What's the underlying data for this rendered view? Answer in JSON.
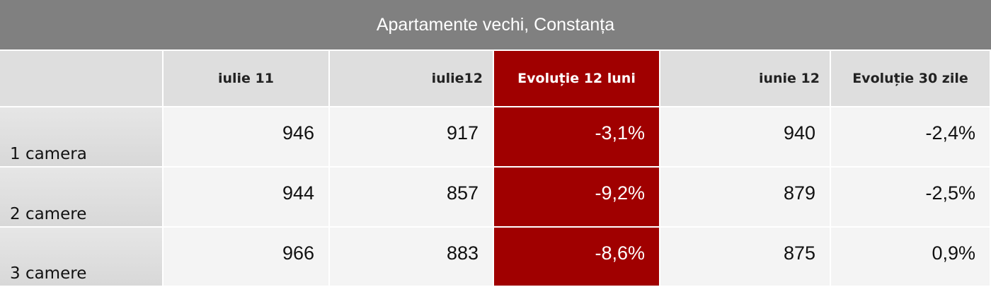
{
  "header": {
    "title": "Apartamente vechi, Constanța"
  },
  "table": {
    "columns": [
      "iulie 11",
      "iulie12",
      "Evoluție 12 luni",
      "iunie 12",
      "Evoluție 30 zile"
    ],
    "rows": [
      {
        "label": "1 camera",
        "cells": [
          "946",
          "917",
          "-3,1%",
          "940",
          "-2,4%"
        ]
      },
      {
        "label": "2 camere",
        "cells": [
          "944",
          "857",
          "-9,2%",
          "879",
          "-2,5%"
        ]
      },
      {
        "label": "3 camere",
        "cells": [
          "966",
          "883",
          "-8,6%",
          "875",
          "0,9%"
        ]
      }
    ]
  }
}
